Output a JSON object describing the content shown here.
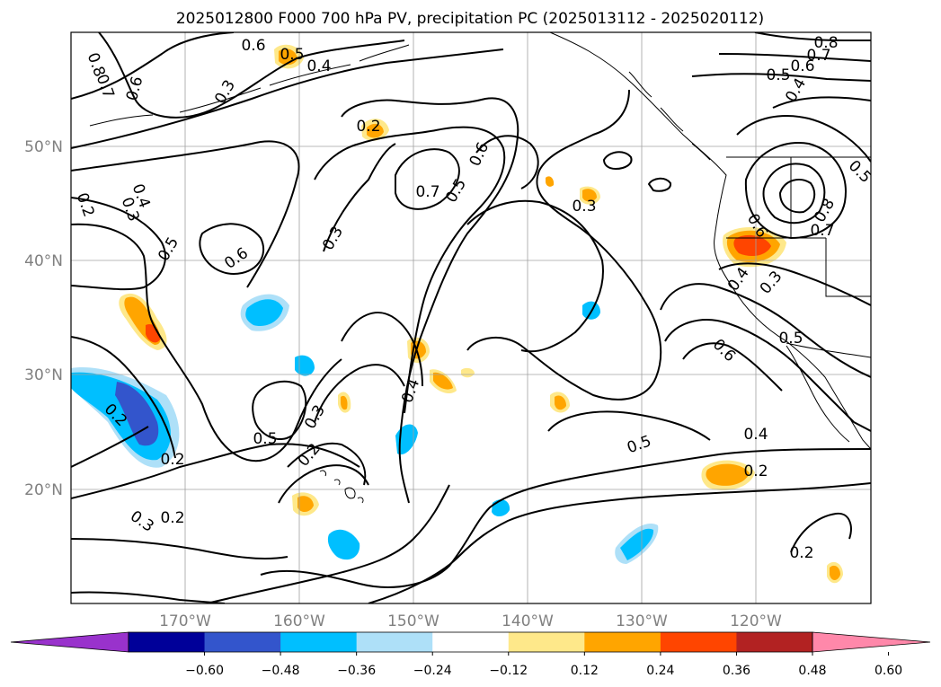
{
  "title": "2025012800 F000 700 hPa PV, precipitation PC (2025013112 - 2025020112)",
  "lon_labels": [
    "170°W",
    "160°W",
    "150°W",
    "140°W",
    "130°W",
    "120°W"
  ],
  "lat_labels": [
    "50°N",
    "40°N",
    "30°N",
    "20°N"
  ],
  "colorbar": {
    "colors": [
      "#9932cc",
      "#000099",
      "#3355cc",
      "#00bfff",
      "#aee0f8",
      "#ffffff",
      "#fee88a",
      "#ffa500",
      "#ff4500",
      "#b22222",
      "#ff88aa"
    ],
    "tick_labels": [
      "−0.60",
      "−0.48",
      "−0.36",
      "−0.24",
      "−0.12",
      "0.12",
      "0.24",
      "0.36",
      "0.48",
      "0.60"
    ]
  },
  "contour_labels": [
    {
      "text": "0.6"
    },
    {
      "text": "0.8"
    },
    {
      "text": "0.5"
    },
    {
      "text": "0.4"
    },
    {
      "text": "0.7"
    },
    {
      "text": "0.6"
    },
    {
      "text": "0.3"
    },
    {
      "text": "0.2"
    },
    {
      "text": "0.4"
    },
    {
      "text": "0.3"
    },
    {
      "text": "0.2"
    },
    {
      "text": "0.5"
    },
    {
      "text": "0.6"
    },
    {
      "text": "0.3"
    },
    {
      "text": "0.7"
    },
    {
      "text": "0.5"
    },
    {
      "text": "0.6"
    },
    {
      "text": "0.3"
    },
    {
      "text": "0.4"
    },
    {
      "text": "0.3"
    },
    {
      "text": "0.5"
    },
    {
      "text": "0.2"
    },
    {
      "text": "0.2"
    },
    {
      "text": "0.2"
    },
    {
      "text": "0.3"
    },
    {
      "text": "0.2"
    },
    {
      "text": "0.5"
    },
    {
      "text": "0.4"
    },
    {
      "text": "0.2"
    },
    {
      "text": "0.2"
    },
    {
      "text": "0.8"
    },
    {
      "text": "0.7"
    },
    {
      "text": "0.6"
    },
    {
      "text": "0.5"
    },
    {
      "text": "0.4"
    },
    {
      "text": "0.5"
    },
    {
      "text": "0.8"
    },
    {
      "text": "0.7"
    },
    {
      "text": "0.6"
    },
    {
      "text": "0.4"
    },
    {
      "text": "0.3"
    },
    {
      "text": "0.5"
    },
    {
      "text": "0.6"
    }
  ]
}
